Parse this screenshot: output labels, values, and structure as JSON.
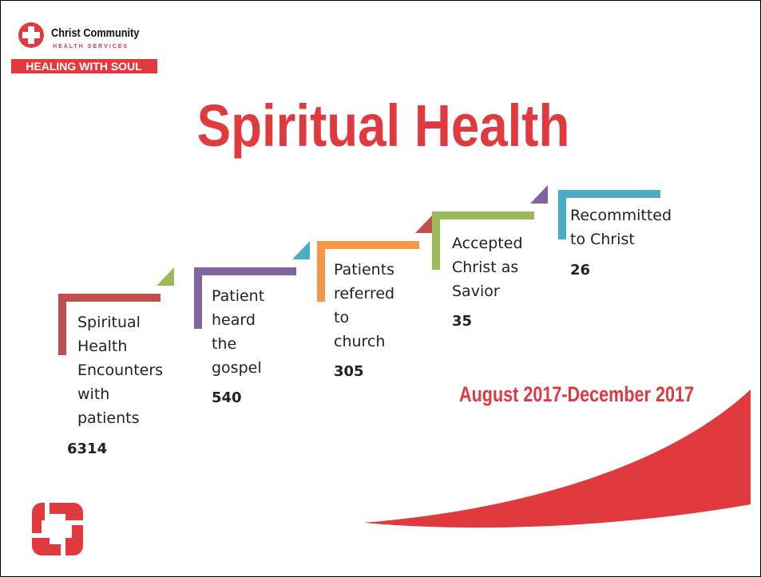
{
  "logo": {
    "name": "Christ Community",
    "subname": "HEALTH SERVICES",
    "tagline": "HEALING WITH SOUL"
  },
  "title": "Spiritual Health",
  "steps": [
    {
      "label": [
        "Spiritual",
        "Health",
        "Encounters",
        "with",
        "patients"
      ],
      "value": "6314"
    },
    {
      "label": [
        "Patient",
        "heard",
        "the",
        "gospel"
      ],
      "value": "540"
    },
    {
      "label": [
        "Patients",
        "referred",
        "to",
        "church"
      ],
      "value": "305"
    },
    {
      "label": [
        "Accepted",
        "Christ as",
        "Savior"
      ],
      "value": "35"
    },
    {
      "label": [
        "Recommitted",
        "to Christ"
      ],
      "value": "26"
    }
  ],
  "period": "August 2017-December 2017"
}
